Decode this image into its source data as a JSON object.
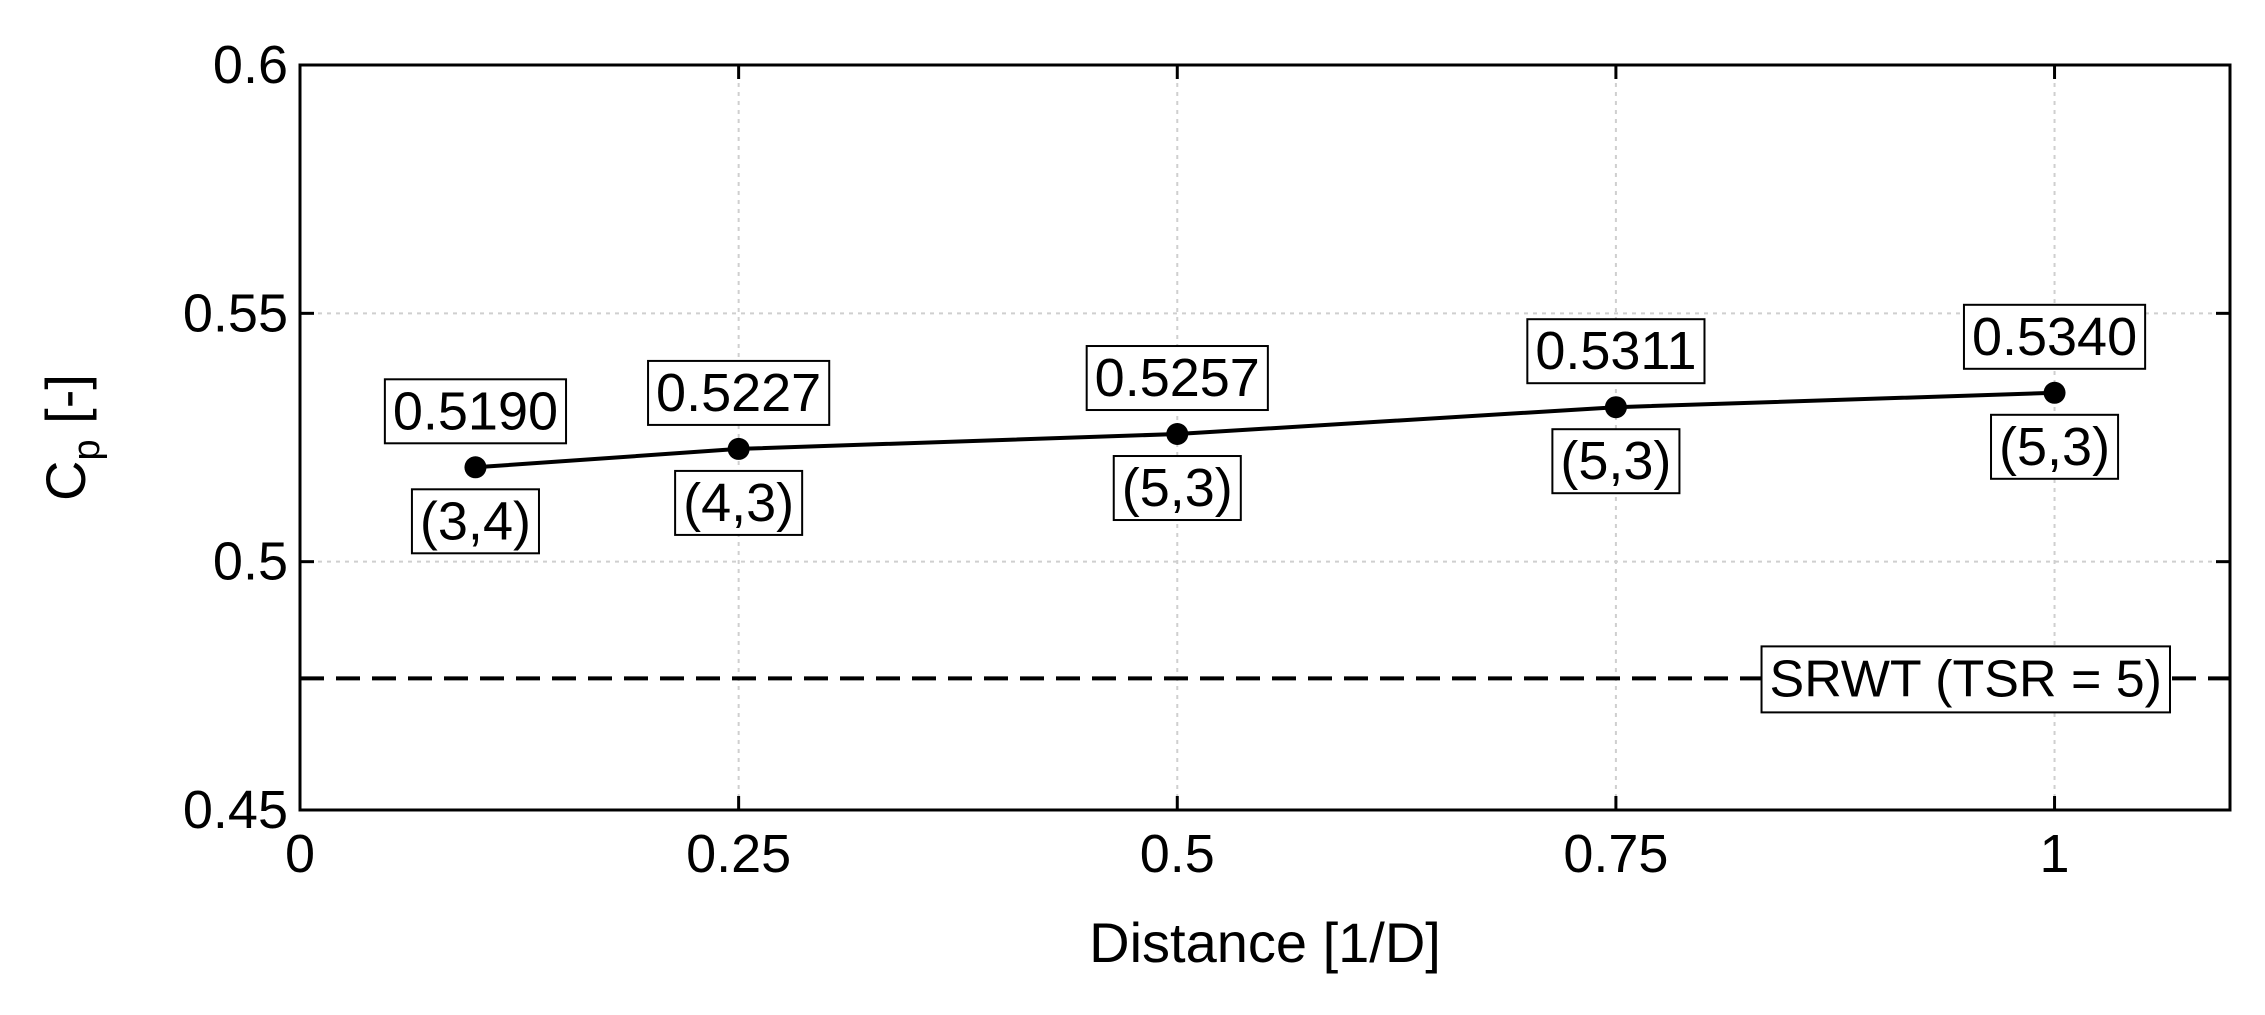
{
  "chart_data": {
    "type": "line",
    "title": "",
    "xlabel": "Distance [1/D]",
    "ylabel_main": "C",
    "ylabel_sub": "p",
    "ylabel_suffix": " [-]",
    "xlim": [
      0,
      1.1
    ],
    "ylim": [
      0.45,
      0.6
    ],
    "xticks": [
      0,
      0.25,
      0.5,
      0.75,
      1
    ],
    "xtick_labels": [
      "0",
      "0.25",
      "0.5",
      "0.75",
      "1"
    ],
    "yticks": [
      0.45,
      0.5,
      0.55,
      0.6
    ],
    "ytick_labels": [
      "0.45",
      "0.5",
      "0.55",
      "0.6"
    ],
    "grid": true,
    "series": [
      {
        "x": [
          0.1,
          0.25,
          0.5,
          0.75,
          1.0
        ],
        "y": [
          0.519,
          0.5227,
          0.5257,
          0.5311,
          0.534
        ],
        "value_labels": [
          "0.5190",
          "0.5227",
          "0.5257",
          "0.5311",
          "0.5340"
        ],
        "config_labels": [
          "(3,4)",
          "(4,3)",
          "(5,3)",
          "(5,3)",
          "(5,3)"
        ],
        "color": "#000000"
      }
    ],
    "reference_line": {
      "y": 0.4765,
      "label": "SRWT (TSR = 5)",
      "style": "dashed",
      "color": "#000000"
    }
  }
}
